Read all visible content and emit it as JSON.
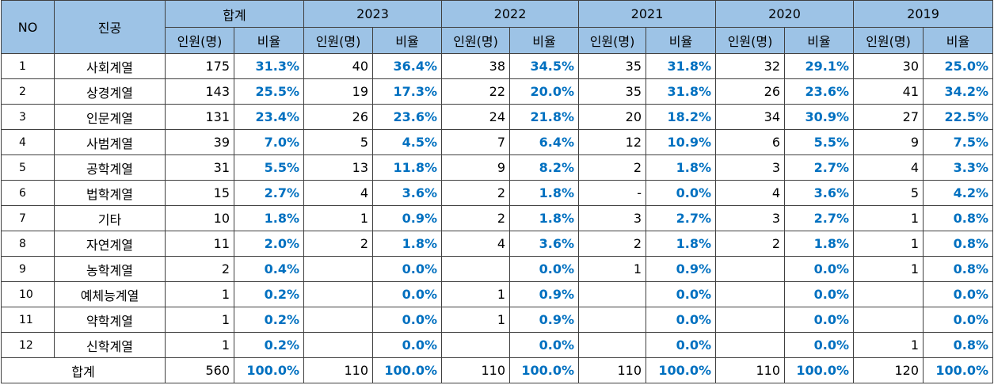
{
  "table": {
    "header": {
      "no": "NO",
      "major": "진공",
      "groups": [
        "합계",
        "2023",
        "2022",
        "2021",
        "2020",
        "2019"
      ],
      "sub_columns": [
        "인원(명)",
        "비율",
        "인원(명)",
        "비율",
        "인원(명)",
        "비율",
        "인원(명)",
        "비율",
        "인원(명)",
        "비율",
        "인원(명)",
        "비율"
      ]
    },
    "rows": [
      [
        1,
        "사회계열",
        175,
        "31.3%",
        40,
        "36.4%",
        38,
        "34.5%",
        35,
        "31.8%",
        32,
        "29.1%",
        30,
        "25.0%"
      ],
      [
        2,
        "상경계열",
        143,
        "25.5%",
        19,
        "17.3%",
        22,
        "20.0%",
        35,
        "31.8%",
        26,
        "23.6%",
        41,
        "34.2%"
      ],
      [
        3,
        "인문계열",
        131,
        "23.4%",
        26,
        "23.6%",
        24,
        "21.8%",
        20,
        "18.2%",
        34,
        "30.9%",
        27,
        "22.5%"
      ],
      [
        4,
        "사범계열",
        39,
        "7.0%",
        5,
        "4.5%",
        7,
        "6.4%",
        12,
        "10.9%",
        6,
        "5.5%",
        9,
        "7.5%"
      ],
      [
        5,
        "공학계열",
        31,
        "5.5%",
        13,
        "11.8%",
        9,
        "8.2%",
        2,
        "1.8%",
        3,
        "2.7%",
        4,
        "3.3%"
      ],
      [
        6,
        "법학계열",
        15,
        "2.7%",
        4,
        "3.6%",
        2,
        "1.8%",
        "-",
        "0.0%",
        4,
        "3.6%",
        5,
        "4.2%"
      ],
      [
        7,
        "기타",
        10,
        "1.8%",
        1,
        "0.9%",
        2,
        "1.8%",
        3,
        "2.7%",
        3,
        "2.7%",
        1,
        "0.8%"
      ],
      [
        8,
        "자연계열",
        11,
        "2.0%",
        2,
        "1.8%",
        4,
        "3.6%",
        2,
        "1.8%",
        2,
        "1.8%",
        1,
        "0.8%"
      ],
      [
        9,
        "농학계열",
        2,
        "0.4%",
        null,
        "0.0%",
        null,
        "0.0%",
        1,
        "0.9%",
        null,
        "0.0%",
        1,
        "0.8%"
      ],
      [
        10,
        "예체능계열",
        1,
        "0.2%",
        null,
        "0.0%",
        1,
        "0.9%",
        null,
        "0.0%",
        null,
        "0.0%",
        null,
        "0.0%"
      ],
      [
        11,
        "약학계열",
        1,
        "0.2%",
        null,
        "0.0%",
        1,
        "0.9%",
        null,
        "0.0%",
        null,
        "0.0%",
        null,
        "0.0%"
      ],
      [
        12,
        "신학계열",
        1,
        "0.2%",
        null,
        "0.0%",
        null,
        "0.0%",
        null,
        "0.0%",
        null,
        "0.0%",
        1,
        "0.8%"
      ]
    ],
    "total": [
      "합계",
      560,
      "100.0%",
      110,
      "100.0%",
      110,
      "100.0%",
      110,
      "100.0%",
      110,
      "100.0%",
      120,
      "100.0%"
    ]
  }
}
